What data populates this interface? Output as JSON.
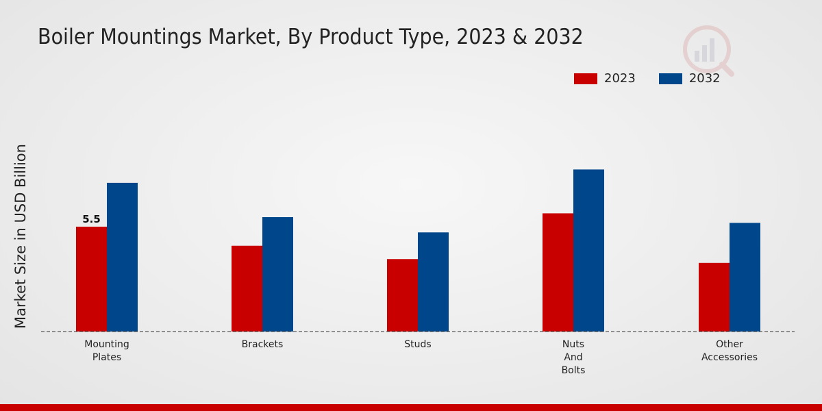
{
  "chart_data": {
    "type": "bar",
    "title": "Boiler Mountings Market, By Product Type, 2023 & 2032",
    "xlabel": "",
    "ylabel": "Market Size in USD Billion",
    "categories": [
      [
        "Mounting",
        "Plates"
      ],
      [
        "Brackets"
      ],
      [
        "Studs"
      ],
      [
        "Nuts",
        "And",
        "Bolts"
      ],
      [
        "Other",
        "Accessories"
      ]
    ],
    "series": [
      {
        "name": "2023",
        "color": "#c80000",
        "values": [
          5.5,
          4.5,
          3.8,
          6.2,
          3.6
        ]
      },
      {
        "name": "2032",
        "color": "#00468b",
        "values": [
          7.8,
          6.0,
          5.2,
          8.5,
          5.7
        ]
      }
    ],
    "data_labels": [
      {
        "series": 0,
        "index": 0,
        "text": "5.5"
      }
    ],
    "ylim": [
      0,
      12
    ],
    "grid": false,
    "legend_position": "top-right"
  },
  "colors": {
    "accent_band": "#c80000"
  }
}
